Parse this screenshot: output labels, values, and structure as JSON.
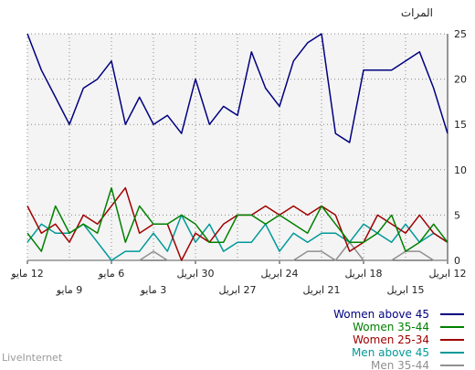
{
  "app": {
    "brand": "LiveInternet"
  },
  "chart_data": {
    "type": "line",
    "ylabel": "المرات",
    "ylim": [
      0,
      25
    ],
    "yticks": [
      0,
      5,
      10,
      15,
      20,
      25
    ],
    "grid": true,
    "legend_position": "bottom-right",
    "x_tick_labels": [
      "12 ابريل",
      "15 ابريل",
      "18 ابريل",
      "21 ابريل",
      "24 ابريل",
      "27 ابريل",
      "30 ابريل",
      "3 مايو",
      "6 مايو",
      "9 مايو",
      "12 مايو"
    ],
    "x": [
      "12 مايو",
      "11 مايو",
      "10 مايو",
      "9 مايو",
      "8 مايو",
      "7 مايو",
      "6 مايو",
      "5 مايو",
      "4 مايو",
      "3 مايو",
      "2 مايو",
      "1 مايو",
      "30 ابريل",
      "29 ابريل",
      "28 ابريل",
      "27 ابريل",
      "26 ابريل",
      "25 ابريل",
      "24 ابريل",
      "23 ابريل",
      "22 ابريل",
      "21 ابريل",
      "20 ابريل",
      "19 ابريل",
      "18 ابريل",
      "17 ابريل",
      "16 ابريل",
      "15 ابريل",
      "14 ابريل",
      "13 ابريل",
      "12 ابريل"
    ],
    "series": [
      {
        "name": "Women above 45",
        "color": "#000080",
        "values": [
          25,
          21,
          18,
          15,
          19,
          20,
          22,
          15,
          18,
          15,
          16,
          14,
          20,
          15,
          17,
          16,
          23,
          19,
          17,
          22,
          24,
          25,
          14,
          13,
          21,
          21,
          21,
          22,
          23,
          19,
          14
        ]
      },
      {
        "name": "Women 35-44",
        "color": "#008000",
        "values": [
          3,
          1,
          6,
          3,
          4,
          3,
          8,
          2,
          6,
          4,
          4,
          5,
          4,
          2,
          2,
          5,
          5,
          4,
          5,
          4,
          3,
          6,
          4,
          2,
          2,
          3,
          5,
          1,
          2,
          4,
          2
        ]
      },
      {
        "name": "Women 25-34",
        "color": "#a00000",
        "values": [
          6,
          3,
          4,
          2,
          5,
          4,
          6,
          8,
          3,
          4,
          4,
          0,
          3,
          2,
          4,
          5,
          5,
          6,
          5,
          6,
          5,
          6,
          5,
          1,
          2,
          5,
          4,
          3,
          5,
          3,
          2
        ]
      },
      {
        "name": "Men above 45",
        "color": "#009999",
        "values": [
          2,
          4,
          3,
          3,
          4,
          2,
          0,
          1,
          1,
          3,
          1,
          5,
          2,
          4,
          1,
          2,
          2,
          4,
          1,
          3,
          2,
          3,
          3,
          2,
          4,
          3,
          2,
          4,
          2,
          3,
          2
        ]
      },
      {
        "name": "Men 35-44",
        "color": "#909090",
        "values": [
          0,
          0,
          0,
          0,
          0,
          0,
          0,
          0,
          0,
          1,
          0,
          0,
          0,
          0,
          0,
          0,
          0,
          0,
          0,
          0,
          1,
          1,
          0,
          2,
          0,
          0,
          0,
          1,
          1,
          0,
          0
        ]
      }
    ]
  }
}
